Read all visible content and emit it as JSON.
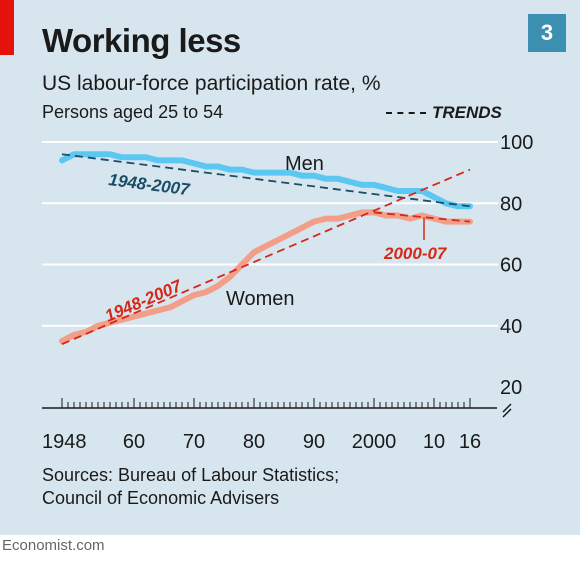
{
  "header": {
    "title": "Working less",
    "chart_number": "3",
    "subtitle": "US labour-force participation rate, %",
    "subsubtitle": "Persons aged 25 to 54",
    "trends_label": "TRENDS"
  },
  "footer": {
    "sources_line1": "Sources: Bureau of Labour Statistics;",
    "sources_line2": "Council of Economic Advisers",
    "brand": "Economist.com"
  },
  "colors": {
    "men": "#5cc8f2",
    "women": "#f29e88",
    "men_trend": "#1a4d66",
    "women_trend": "#d62818",
    "background": "#d7e6ee",
    "accent": "#e3120b",
    "badge": "#3b8fb0"
  },
  "chart_data": {
    "type": "line",
    "xlim": [
      1948,
      2016
    ],
    "ylim": [
      20,
      100
    ],
    "x_ticks": [
      1948,
      1960,
      1970,
      1980,
      1990,
      2000,
      2010,
      2016
    ],
    "x_tick_labels": [
      "1948",
      "60",
      "70",
      "80",
      "90",
      "2000",
      "10",
      "16"
    ],
    "y_ticks": [
      20,
      40,
      60,
      80,
      100
    ],
    "y_tick_labels": [
      "20",
      "40",
      "60",
      "80",
      "100"
    ],
    "grid": true,
    "series": [
      {
        "name": "Men",
        "x": [
          1948,
          1950,
          1952,
          1954,
          1956,
          1958,
          1960,
          1962,
          1964,
          1966,
          1968,
          1970,
          1972,
          1974,
          1976,
          1978,
          1980,
          1982,
          1984,
          1986,
          1988,
          1990,
          1992,
          1994,
          1996,
          1998,
          2000,
          2002,
          2004,
          2006,
          2008,
          2010,
          2012,
          2014,
          2016
        ],
        "y": [
          94,
          96,
          96,
          96,
          96,
          95,
          95,
          95,
          94,
          94,
          94,
          93,
          92,
          92,
          91,
          91,
          90,
          90,
          90,
          90,
          89,
          89,
          88,
          88,
          87,
          86,
          86,
          85,
          84,
          84,
          84,
          82,
          80,
          79,
          79
        ]
      },
      {
        "name": "Women",
        "x": [
          1948,
          1950,
          1952,
          1954,
          1956,
          1958,
          1960,
          1962,
          1964,
          1966,
          1968,
          1970,
          1972,
          1974,
          1976,
          1978,
          1980,
          1982,
          1984,
          1986,
          1988,
          1990,
          1992,
          1994,
          1996,
          1998,
          2000,
          2002,
          2004,
          2006,
          2008,
          2010,
          2012,
          2014,
          2016
        ],
        "y": [
          35,
          37,
          38,
          40,
          41,
          42,
          43,
          44,
          45,
          46,
          48,
          50,
          51,
          53,
          56,
          60,
          64,
          66,
          68,
          70,
          72,
          74,
          75,
          75,
          76,
          77,
          77,
          76,
          76,
          75,
          76,
          75,
          74,
          74,
          74
        ]
      }
    ],
    "trends": [
      {
        "label": "1948-2007",
        "series": "Men",
        "x": [
          1948,
          2016
        ],
        "y": [
          96,
          79
        ]
      },
      {
        "label": "1948-2007",
        "series": "Women",
        "x": [
          1948,
          2016
        ],
        "y": [
          34,
          91
        ]
      },
      {
        "label": "2000-07",
        "series": "Women",
        "x": [
          2000,
          2016
        ],
        "y": [
          77,
          74
        ]
      }
    ]
  }
}
